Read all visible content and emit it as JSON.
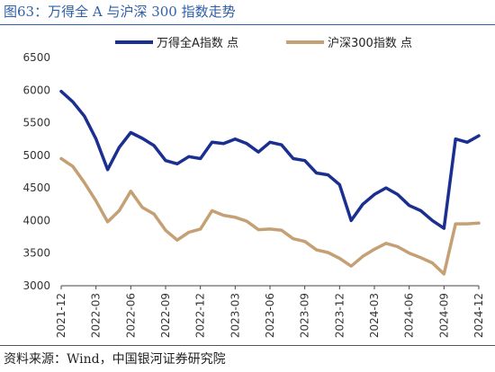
{
  "figure_title": "图63：万得全 A 与沪深 300 指数走势",
  "source_note": "资料来源：Wind，中国银河证券研究院",
  "colors": {
    "title": "#2E5FA8",
    "wind_a": "#1A2F8F",
    "hs300": "#C4A074"
  },
  "chart_data": {
    "type": "line",
    "title": "",
    "xlabel": "",
    "ylabel": "",
    "ylim": [
      3000,
      6500
    ],
    "yticks": [
      3000,
      3500,
      4000,
      4500,
      5000,
      5500,
      6000,
      6500
    ],
    "grid": false,
    "legend_position": "top",
    "x_tick_labels": [
      "2021-12",
      "2022-03",
      "2022-06",
      "2022-09",
      "2022-12",
      "2023-03",
      "2023-06",
      "2023-09",
      "2023-12",
      "2024-03",
      "2024-06",
      "2024-09",
      "2024-12"
    ],
    "x": [
      "2021-12",
      "2022-01",
      "2022-02",
      "2022-03",
      "2022-04",
      "2022-05",
      "2022-06",
      "2022-07",
      "2022-08",
      "2022-09",
      "2022-10",
      "2022-11",
      "2022-12",
      "2023-01",
      "2023-02",
      "2023-03",
      "2023-04",
      "2023-05",
      "2023-06",
      "2023-07",
      "2023-08",
      "2023-09",
      "2023-10",
      "2023-11",
      "2023-12",
      "2024-01",
      "2024-02",
      "2024-03",
      "2024-04",
      "2024-05",
      "2024-06",
      "2024-07",
      "2024-08",
      "2024-09",
      "2024-10",
      "2024-11",
      "2024-12"
    ],
    "series": [
      {
        "name": "万得全A指数 点",
        "values": [
          5980,
          5820,
          5600,
          5250,
          4780,
          5120,
          5350,
          5260,
          5150,
          4920,
          4870,
          4980,
          4950,
          5200,
          5180,
          5250,
          5180,
          5050,
          5200,
          5160,
          4950,
          4920,
          4730,
          4700,
          4550,
          4000,
          4250,
          4400,
          4500,
          4400,
          4230,
          4150,
          4000,
          3880,
          5250,
          5200,
          5300
        ]
      },
      {
        "name": "沪深300指数 点",
        "values": [
          4950,
          4830,
          4580,
          4300,
          3980,
          4150,
          4450,
          4200,
          4100,
          3850,
          3700,
          3820,
          3870,
          4150,
          4080,
          4050,
          3990,
          3860,
          3870,
          3850,
          3720,
          3680,
          3550,
          3510,
          3420,
          3300,
          3450,
          3560,
          3650,
          3600,
          3500,
          3430,
          3350,
          3180,
          3950,
          3950,
          3960
        ]
      }
    ]
  }
}
